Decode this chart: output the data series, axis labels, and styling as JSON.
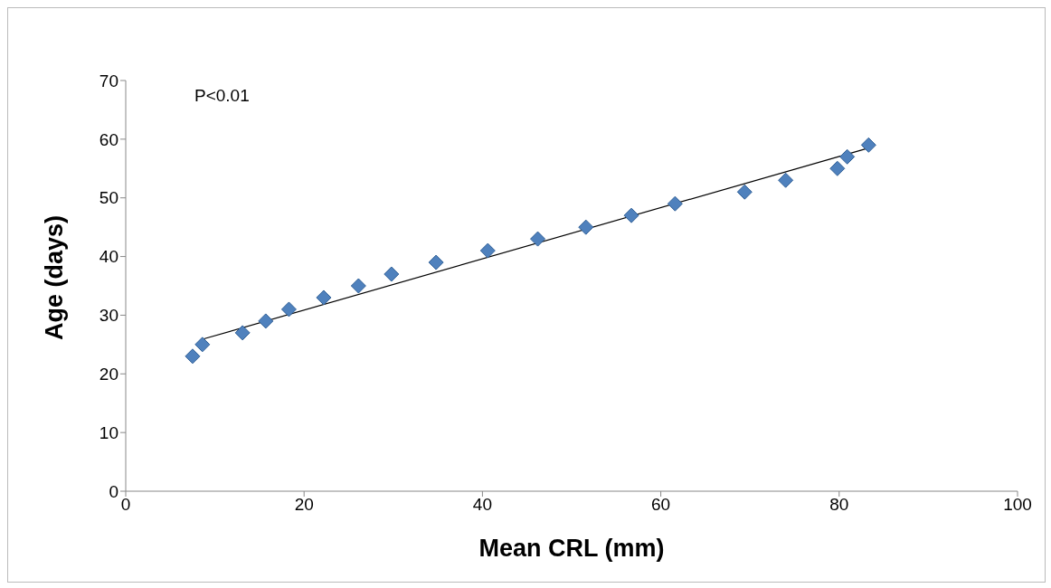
{
  "chart_data": {
    "type": "scatter",
    "xlabel": "Mean CRL (mm)",
    "ylabel": "Age (days)",
    "annotations": [
      "P<0.01"
    ],
    "xlim": [
      0,
      100
    ],
    "xticks": [
      0,
      20,
      40,
      60,
      80,
      100
    ],
    "ylim": [
      0,
      70
    ],
    "yticks": [
      0,
      10,
      20,
      30,
      40,
      50,
      60,
      70
    ],
    "grid": false,
    "legend": false,
    "marker": "diamond",
    "series": [
      {
        "color": "#4f81bd",
        "x": [
          7.5,
          8.6,
          13.1,
          15.7,
          18.3,
          22.2,
          26.1,
          29.8,
          34.8,
          40.6,
          46.2,
          51.6,
          56.7,
          61.6,
          69.4,
          74.0,
          79.8,
          80.9,
          83.3
        ],
        "values": [
          23,
          25,
          27,
          29,
          31,
          33,
          35,
          37,
          39,
          41,
          43,
          45,
          47,
          49,
          51,
          53,
          55,
          57,
          59
        ]
      },
      {
        "type": "line",
        "color": "#000000",
        "marker": "none",
        "line_style": "solid",
        "x": [
          8.6,
          83.3
        ],
        "values": [
          25.9,
          58.5
        ]
      }
    ]
  }
}
